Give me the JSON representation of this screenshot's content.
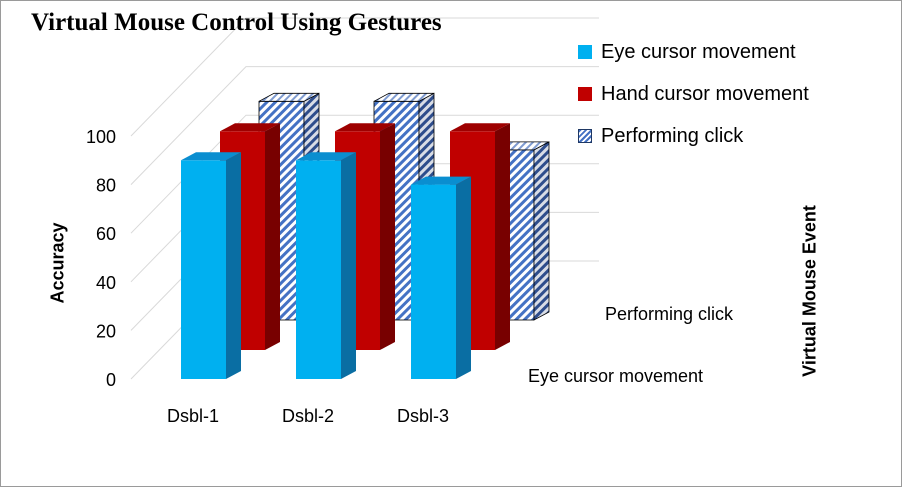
{
  "chart_data": {
    "type": "bar",
    "title": "Virtual Mouse Control Using Gestures",
    "xlabel": "",
    "ylabel": "Accuracy",
    "zlabel": "Virtual Mouse Event",
    "categories": [
      "Dsbl-1",
      "Dsbl-2",
      "Dsbl-3"
    ],
    "yticks": [
      0,
      20,
      40,
      60,
      80,
      100
    ],
    "ylim": [
      0,
      100
    ],
    "grid": true,
    "legend_position": "top-right",
    "series": [
      {
        "name": "Eye cursor movement",
        "values": [
          90,
          90,
          80
        ],
        "color": "#00b0f0"
      },
      {
        "name": "Hand cursor movement",
        "values": [
          90,
          90,
          90
        ],
        "color": "#c00000"
      },
      {
        "name": "Performing click",
        "values": [
          90,
          90,
          70
        ],
        "color": "#4472c4"
      }
    ],
    "depth_axis_labels": [
      "Eye cursor movement",
      "Performing click"
    ]
  }
}
